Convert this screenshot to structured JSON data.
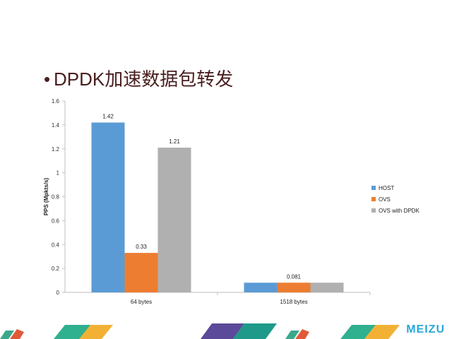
{
  "slide": {
    "bullet": "•",
    "title": "DPDK加速数据包转发",
    "brand": "MEIZU"
  },
  "colors": {
    "host": "#5b9bd5",
    "ovs": "#ed7d31",
    "ovs_dpdk": "#a5a5a5",
    "title": "#4a1e1e",
    "brand": "#2aa8d8"
  },
  "chart_data": {
    "type": "bar",
    "categories": [
      "64 bytes",
      "1518 bytes"
    ],
    "series": [
      {
        "name": "HOST",
        "values": [
          1.42,
          0.081
        ],
        "color": "#5b9bd5"
      },
      {
        "name": "OVS",
        "values": [
          0.33,
          0.081
        ],
        "color": "#ed7d31"
      },
      {
        "name": "OVS with DPDK",
        "values": [
          1.21,
          0.081
        ],
        "color": "#b0b0b0"
      }
    ],
    "data_labels": [
      [
        "1.42",
        "0.33",
        "1.21"
      ],
      [
        null,
        "0.081",
        null
      ]
    ],
    "ylabel": "PPS (Mpkts/s)",
    "ylim": [
      0,
      1.6
    ],
    "yticks": [
      "0",
      "0.2",
      "0.4",
      "0.6",
      "0.8",
      "1",
      "1.2",
      "1.4",
      "1.6"
    ],
    "grid": false,
    "legend": "right"
  }
}
